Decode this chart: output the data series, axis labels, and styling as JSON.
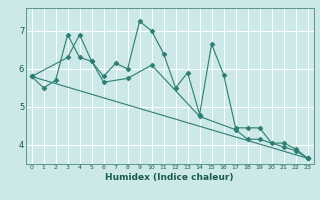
{
  "xlabel": "Humidex (Indice chaleur)",
  "bg_color": "#cce8e8",
  "line_color": "#2d7d72",
  "grid_color": "#ffffff",
  "xlim": [
    -0.5,
    23.5
  ],
  "ylim": [
    3.5,
    7.6
  ],
  "yticks": [
    4,
    5,
    6,
    7
  ],
  "xticks": [
    0,
    1,
    2,
    3,
    4,
    5,
    6,
    7,
    8,
    9,
    10,
    11,
    12,
    13,
    14,
    15,
    16,
    17,
    18,
    19,
    20,
    21,
    22,
    23
  ],
  "line1_x": [
    0,
    1,
    2,
    3,
    4,
    5,
    6,
    7,
    8,
    9,
    10,
    11,
    12,
    13,
    14,
    15,
    16,
    17,
    18,
    19,
    20,
    21,
    22,
    23
  ],
  "line1_y": [
    5.8,
    5.5,
    5.7,
    6.9,
    6.3,
    6.2,
    5.8,
    6.15,
    6.0,
    7.25,
    7.0,
    6.4,
    5.5,
    5.9,
    4.8,
    6.65,
    5.85,
    4.45,
    4.45,
    4.45,
    4.05,
    4.05,
    3.9,
    3.65
  ],
  "line2_x": [
    0,
    23
  ],
  "line2_y": [
    5.8,
    3.65
  ],
  "line3_x": [
    0,
    3,
    4,
    5,
    6,
    8,
    10,
    14,
    17,
    18,
    19,
    21,
    22,
    23
  ],
  "line3_y": [
    5.8,
    6.3,
    6.9,
    6.2,
    5.65,
    5.75,
    6.1,
    4.75,
    4.4,
    4.15,
    4.15,
    3.95,
    3.85,
    3.65
  ],
  "marker": "D",
  "markersize": 2.5,
  "linewidth": 0.8
}
